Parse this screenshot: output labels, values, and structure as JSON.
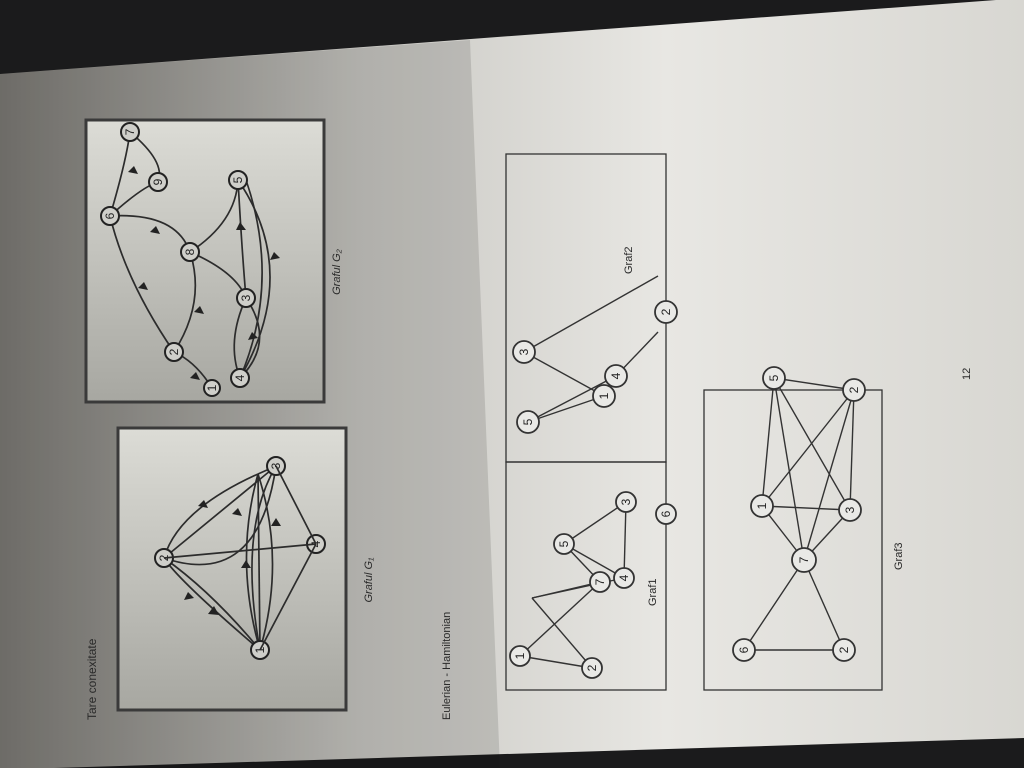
{
  "page": {
    "title": "Tare conexitate",
    "section": "Eulerian - Hamiltonian",
    "page_number": "12"
  },
  "g1": {
    "caption": "Graful G₁",
    "nodes": [
      "1",
      "2",
      "3",
      "4"
    ]
  },
  "g2": {
    "caption": "Graful G₂",
    "nodes": [
      "1",
      "2",
      "3",
      "4",
      "5",
      "6",
      "7",
      "8",
      "9"
    ]
  },
  "graf1": {
    "caption": "Graf1",
    "nodes": [
      "1",
      "2",
      "3",
      "4",
      "5",
      "6",
      "7"
    ]
  },
  "graf2": {
    "caption": "Graf2",
    "nodes": [
      "1",
      "2",
      "3",
      "4",
      "5"
    ]
  },
  "graf3": {
    "caption": "Graf3",
    "nodes": [
      "1",
      "2",
      "3",
      "5",
      "6",
      "7",
      "2"
    ]
  }
}
